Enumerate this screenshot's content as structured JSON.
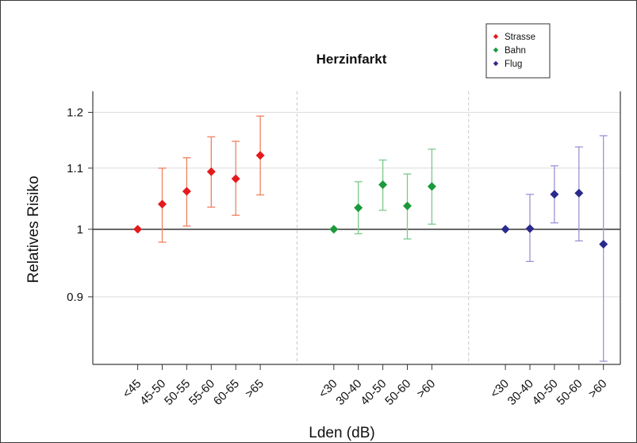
{
  "chart_data": {
    "type": "scatter",
    "title": "Herzinfarkt",
    "xlabel": "Lden (dB)",
    "ylabel": "Relatives Risiko",
    "yscale": "log",
    "ylim": [
      0.81,
      1.24
    ],
    "yticks": [
      {
        "value": 0.9,
        "label": "0.9"
      },
      {
        "value": 1.0,
        "label": "1"
      },
      {
        "value": 1.1,
        "label": "1.1"
      },
      {
        "value": 1.2,
        "label": "1.2"
      }
    ],
    "reference_line": 1.0,
    "grid": true,
    "legend_position": "top-right",
    "series": [
      {
        "name": "Strasse",
        "point_color": "#e41a1c",
        "bar_color": "#f08060",
        "categories": [
          "<45",
          "45-50",
          "50-55",
          "55-60",
          "60-65",
          ">65"
        ],
        "values": [
          1.0,
          1.04,
          1.061,
          1.094,
          1.082,
          1.122
        ],
        "lower": [
          null,
          0.98,
          1.005,
          1.035,
          1.022,
          1.055
        ],
        "upper": [
          null,
          1.1,
          1.118,
          1.155,
          1.147,
          1.193
        ]
      },
      {
        "name": "Bahn",
        "point_color": "#1a9a3a",
        "bar_color": "#7dc98a",
        "categories": [
          "<30",
          "30-40",
          "40-50",
          "50-60",
          ">60"
        ],
        "values": [
          1.0,
          1.034,
          1.072,
          1.037,
          1.069
        ],
        "lower": [
          null,
          0.993,
          1.03,
          0.985,
          1.008
        ],
        "upper": [
          null,
          1.077,
          1.114,
          1.09,
          1.133
        ]
      },
      {
        "name": "Flug",
        "point_color": "#2a2a8c",
        "bar_color": "#9a95d4",
        "categories": [
          "<30",
          "30-40",
          "40-50",
          "50-60",
          ">60"
        ],
        "values": [
          1.0,
          1.001,
          1.056,
          1.058,
          0.977
        ],
        "lower": [
          null,
          0.951,
          1.01,
          0.982,
          0.814
        ],
        "upper": [
          null,
          1.056,
          1.104,
          1.137,
          1.157
        ]
      }
    ]
  },
  "colors": {
    "frame": "#3a3a3a",
    "grid": "#dcdcdc",
    "separator": "#c8c8c8",
    "reference_line": "#222222"
  }
}
